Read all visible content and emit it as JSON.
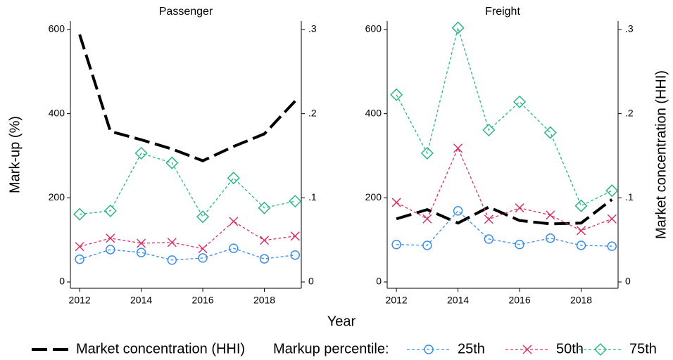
{
  "xlabel": "Year",
  "ylabel": "Mark-up (%)",
  "y2label": "Market concentration (HHI)",
  "legend_title": "Markup percentile:",
  "chart_data": [
    {
      "type": "line",
      "title": "Passenger",
      "x": [
        2012,
        2013,
        2014,
        2015,
        2016,
        2017,
        2018,
        2019
      ],
      "xlim": [
        2011.7,
        2019.2
      ],
      "xticks": [
        2012,
        2014,
        2016,
        2018
      ],
      "ylim": [
        -15,
        620
      ],
      "yticks": [
        0,
        200,
        400,
        600
      ],
      "y2lim": [
        -0.0075,
        0.31
      ],
      "y2ticks": [
        {
          "value": 0,
          "label": "0"
        },
        {
          "value": 0.1,
          "label": ".1"
        },
        {
          "value": 0.2,
          "label": ".2"
        },
        {
          "value": 0.3,
          "label": ".3"
        }
      ],
      "series": [
        {
          "name": "Market concentration (HHI)",
          "color": "#000000",
          "axis": "y2",
          "values": [
            0.294,
            0.179,
            0.169,
            0.158,
            0.144,
            0.161,
            0.176,
            0.215
          ]
        },
        {
          "name": "25th",
          "color": "#3a8ee6",
          "marker": "circle",
          "values": [
            54,
            77,
            70,
            52,
            57,
            80,
            55,
            64
          ]
        },
        {
          "name": "50th",
          "color": "#d6336c",
          "marker": "x",
          "values": [
            84,
            104,
            92,
            94,
            79,
            144,
            99,
            109
          ]
        },
        {
          "name": "75th",
          "color": "#2bb58b",
          "marker": "diamond",
          "values": [
            161,
            169,
            306,
            283,
            155,
            247,
            176,
            192
          ]
        }
      ]
    },
    {
      "type": "line",
      "title": "Freight",
      "x": [
        2012,
        2013,
        2014,
        2015,
        2016,
        2017,
        2018,
        2019
      ],
      "xlim": [
        2011.7,
        2019.2
      ],
      "xticks": [
        2012,
        2014,
        2016,
        2018
      ],
      "ylim": [
        -15,
        620
      ],
      "yticks": [
        0,
        200,
        400,
        600
      ],
      "y2lim": [
        -0.0075,
        0.31
      ],
      "y2ticks": [
        {
          "value": 0,
          "label": "0"
        },
        {
          "value": 0.1,
          "label": ".1"
        },
        {
          "value": 0.2,
          "label": ".2"
        },
        {
          "value": 0.3,
          "label": ".3"
        }
      ],
      "series": [
        {
          "color": "#000000",
          "axis": "y2",
          "values": [
            0.075,
            0.086,
            0.07,
            0.089,
            0.073,
            0.069,
            0.07,
            0.098
          ]
        },
        {
          "color": "#3a8ee6",
          "marker": "circle",
          "values": [
            89,
            87,
            169,
            102,
            89,
            104,
            87,
            85
          ]
        },
        {
          "color": "#d6336c",
          "marker": "x",
          "values": [
            189,
            150,
            318,
            149,
            176,
            159,
            122,
            150
          ]
        },
        {
          "color": "#2bb58b",
          "marker": "diamond",
          "values": [
            445,
            306,
            604,
            361,
            428,
            355,
            181,
            217
          ]
        }
      ]
    }
  ]
}
